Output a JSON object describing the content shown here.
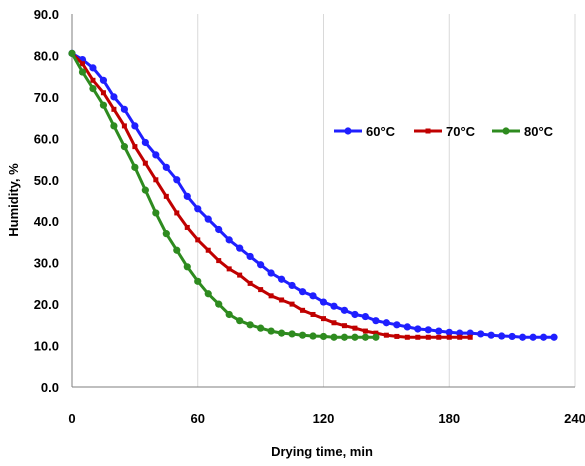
{
  "chart_data": {
    "type": "line",
    "title": "",
    "xlabel": "Drying time, min",
    "ylabel": "Humidity, %",
    "xlim": [
      0,
      240
    ],
    "ylim": [
      0,
      90
    ],
    "xticks": [
      0,
      60,
      120,
      180,
      240
    ],
    "xtick_labels": [
      "0",
      "60",
      "120",
      "180",
      "240"
    ],
    "yticks": [
      0,
      10,
      20,
      30,
      40,
      50,
      60,
      70,
      80,
      90
    ],
    "ytick_labels": [
      "0.0",
      "10.0",
      "20.0",
      "30.0",
      "40.0",
      "50.0",
      "60.0",
      "70.0",
      "80.0",
      "90.0"
    ],
    "grid": "vertical",
    "legend_position": "right",
    "series": [
      {
        "name": "60°C",
        "color": "#1f1fff",
        "marker": "circle",
        "x": [
          0,
          5,
          10,
          15,
          20,
          25,
          30,
          35,
          40,
          45,
          50,
          55,
          60,
          65,
          70,
          75,
          80,
          85,
          90,
          95,
          100,
          105,
          110,
          115,
          120,
          125,
          130,
          135,
          140,
          145,
          150,
          155,
          160,
          165,
          170,
          175,
          180,
          185,
          190,
          195,
          200,
          205,
          210,
          215,
          220,
          225,
          230
        ],
        "y": [
          80.5,
          79,
          77,
          74,
          70,
          67,
          63,
          59,
          56,
          53,
          50,
          46,
          43,
          40.5,
          38,
          35.5,
          33.5,
          31.5,
          29.5,
          27.5,
          26,
          24.5,
          23,
          22,
          20.5,
          19.5,
          18.5,
          17.5,
          17,
          16,
          15.5,
          15,
          14.5,
          14,
          13.8,
          13.5,
          13.2,
          13,
          13,
          12.8,
          12.5,
          12.3,
          12.2,
          12,
          12,
          12,
          12
        ]
      },
      {
        "name": "70°C",
        "color": "#c00000",
        "marker": "square",
        "x": [
          0,
          5,
          10,
          15,
          20,
          25,
          30,
          35,
          40,
          45,
          50,
          55,
          60,
          65,
          70,
          75,
          80,
          85,
          90,
          95,
          100,
          105,
          110,
          115,
          120,
          125,
          130,
          135,
          140,
          145,
          150,
          155,
          160,
          165,
          170,
          175,
          180,
          185,
          190
        ],
        "y": [
          80.5,
          78,
          74,
          71,
          67,
          63,
          58,
          54,
          50,
          46,
          42,
          38.5,
          35.5,
          33,
          30.5,
          28.5,
          27,
          25,
          23.5,
          22,
          21,
          20,
          18.5,
          17.5,
          16.5,
          15.5,
          14.8,
          14.2,
          13.5,
          13,
          12.5,
          12.2,
          12,
          12,
          12,
          12,
          12,
          12,
          12
        ]
      },
      {
        "name": "80°C",
        "color": "#2e8b1f",
        "marker": "circle",
        "x": [
          0,
          5,
          10,
          15,
          20,
          25,
          30,
          35,
          40,
          45,
          50,
          55,
          60,
          65,
          70,
          75,
          80,
          85,
          90,
          95,
          100,
          105,
          110,
          115,
          120,
          125,
          130,
          135,
          140,
          145
        ],
        "y": [
          80.5,
          76,
          72,
          68,
          63,
          58,
          53,
          47.5,
          42,
          37,
          33,
          29,
          25.5,
          22.5,
          20,
          17.5,
          16,
          15,
          14.2,
          13.5,
          13,
          12.8,
          12.5,
          12.3,
          12.2,
          12,
          12,
          12,
          12,
          12
        ]
      }
    ]
  }
}
